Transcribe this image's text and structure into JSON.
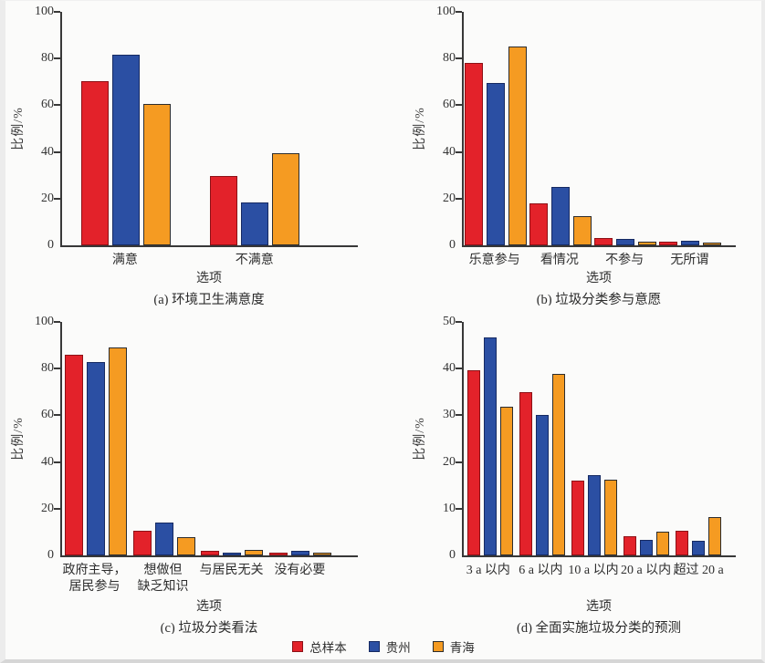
{
  "legend": {
    "items": [
      {
        "label": "总样本",
        "color": "#e3222a",
        "border": "#8d1116"
      },
      {
        "label": "贵州",
        "color": "#2b4fa3",
        "border": "#162a62"
      },
      {
        "label": "青海",
        "color": "#f59b22",
        "border": "#2d2d2d"
      }
    ]
  },
  "chart_data": [
    {
      "type": "bar",
      "caption": "(a) 环境卫生满意度",
      "xlabel": "选项",
      "ylabel": "比例/%",
      "ylim": [
        0,
        100
      ],
      "yticks": [
        0,
        20,
        40,
        60,
        80,
        100
      ],
      "grid": false,
      "legend_position": "figure-bottom-center",
      "categories": [
        "满意",
        "不满意"
      ],
      "series": [
        {
          "name": "总样本",
          "color": "#e3222a",
          "border": "#8d1116",
          "values": [
            70.5,
            29.5
          ]
        },
        {
          "name": "贵州",
          "color": "#2b4fa3",
          "border": "#162a62",
          "values": [
            81.5,
            18.5
          ]
        },
        {
          "name": "青海",
          "color": "#f59b22",
          "border": "#2d2d2d",
          "values": [
            60.5,
            39.5
          ]
        }
      ]
    },
    {
      "type": "bar",
      "caption": "(b) 垃圾分类参与意愿",
      "xlabel": "选项",
      "ylabel": "比例/%",
      "ylim": [
        0,
        100
      ],
      "yticks": [
        0,
        20,
        40,
        60,
        80,
        100
      ],
      "grid": false,
      "legend_position": "figure-bottom-center",
      "categories": [
        "乐意参与",
        "看情况",
        "不参与",
        "无所谓"
      ],
      "series": [
        {
          "name": "总样本",
          "color": "#e3222a",
          "border": "#8d1116",
          "values": [
            78,
            18,
            3,
            1.4
          ]
        },
        {
          "name": "贵州",
          "color": "#2b4fa3",
          "border": "#162a62",
          "values": [
            69.5,
            25,
            2.8,
            2
          ]
        },
        {
          "name": "青海",
          "color": "#f59b22",
          "border": "#2d2d2d",
          "values": [
            85,
            12.5,
            1.5,
            1
          ]
        }
      ]
    },
    {
      "type": "bar",
      "caption": "(c) 垃圾分类看法",
      "xlabel": "选项",
      "ylabel": "比例/%",
      "ylim": [
        0,
        100
      ],
      "yticks": [
        0,
        20,
        40,
        60,
        80,
        100
      ],
      "grid": false,
      "legend_position": "figure-bottom-center",
      "categories": [
        "政府主导，\n居民参与",
        "想做但\n缺乏知识",
        "与居民无关",
        "没有必要"
      ],
      "series": [
        {
          "name": "总样本",
          "color": "#e3222a",
          "border": "#8d1116",
          "values": [
            86,
            10.5,
            2,
            1.2
          ]
        },
        {
          "name": "贵州",
          "color": "#2b4fa3",
          "border": "#162a62",
          "values": [
            83,
            14,
            1.2,
            1.8
          ]
        },
        {
          "name": "青海",
          "color": "#f59b22",
          "border": "#2d2d2d",
          "values": [
            89,
            8,
            2.2,
            1.2
          ]
        }
      ]
    },
    {
      "type": "bar",
      "caption": "(d) 全面实施垃圾分类的预测",
      "xlabel": "选项",
      "ylabel": "比例/%",
      "ylim": [
        0,
        50
      ],
      "yticks": [
        0,
        10,
        20,
        30,
        40,
        50
      ],
      "grid": false,
      "legend_position": "figure-bottom-center",
      "categories": [
        "3 a 以内",
        "6 a 以内",
        "10 a 以内",
        "20 a 以内",
        "超过 20 a"
      ],
      "series": [
        {
          "name": "总样本",
          "color": "#e3222a",
          "border": "#8d1116",
          "values": [
            39.7,
            35,
            16.1,
            4.1,
            5.3
          ]
        },
        {
          "name": "贵州",
          "color": "#2b4fa3",
          "border": "#162a62",
          "values": [
            46.7,
            30,
            17.2,
            3.3,
            3.2
          ]
        },
        {
          "name": "青海",
          "color": "#f59b22",
          "border": "#2d2d2d",
          "values": [
            31.8,
            38.8,
            16.2,
            5.1,
            8.3
          ]
        }
      ]
    }
  ]
}
